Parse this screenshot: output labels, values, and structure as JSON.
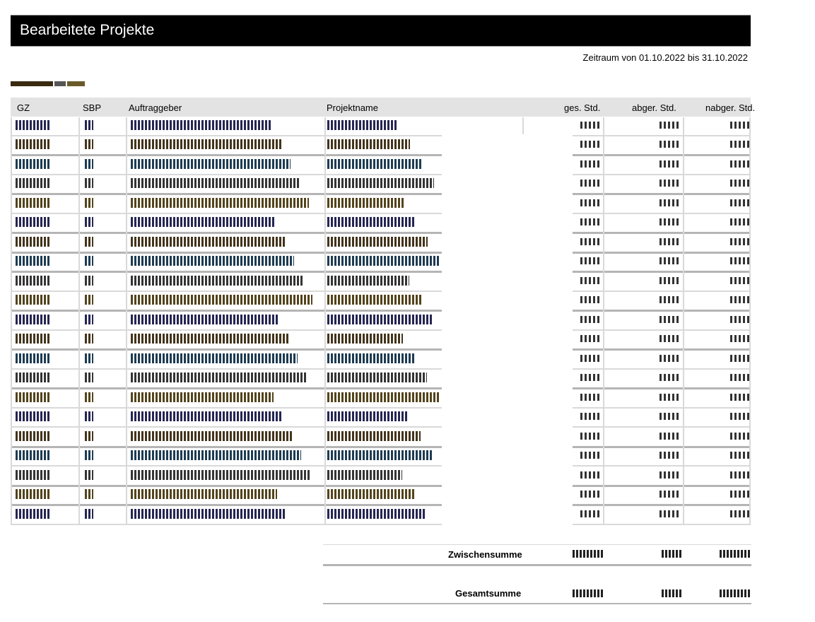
{
  "report": {
    "title": "Bearbeitete Projekte",
    "period": "Zeitraum von 01.10.2022 bis 31.10.2022"
  },
  "table": {
    "columns": [
      "GZ",
      "SBP",
      "Auftraggeber",
      "Projektname",
      "ges. Std.",
      "abger. Std.",
      "nabger. Std."
    ]
  },
  "summary": {
    "subtotal_label": "Zwischensumme",
    "total_label": "Gesamtsumme"
  },
  "colors": {
    "header_bg": "#000000",
    "header_text": "#ffffff",
    "column_header_bg": "#e3e3e3",
    "grid": "#d9d9d9"
  }
}
